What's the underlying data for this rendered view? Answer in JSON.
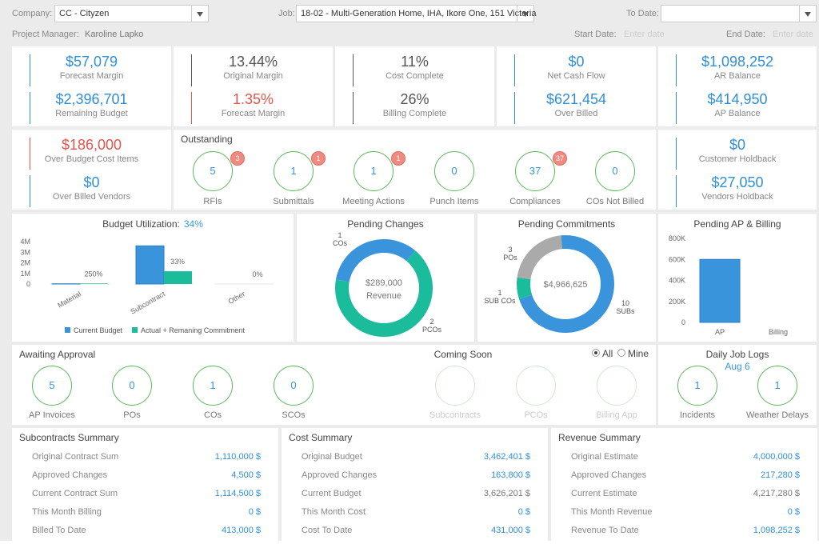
{
  "header": {
    "company_label": "Company:",
    "company": "CC - Cityzen",
    "job_label": "Job:",
    "job": "18-02 - Multi-Generation Home, IHA, Ikore One, 151 Victoria",
    "to_date_label": "To Date:",
    "pm_label": "Project Manager:",
    "pm": "Karoline Lapko",
    "start_date_label": "Start Date:",
    "start_date_placeholder": "Enter date",
    "end_date_label": "End Date:",
    "end_date_placeholder": "Enter date"
  },
  "kpi_cards": [
    {
      "items": [
        {
          "value": "$57,079",
          "label": "Forecast Margin",
          "color": "#2f8fd8"
        },
        {
          "value": "$2,396,701",
          "label": "Remaining Budget",
          "color": "#2f8fd8"
        }
      ]
    },
    {
      "items": [
        {
          "value": "13.44%",
          "label": "Original Margin",
          "color": "#555555"
        },
        {
          "value": "1.35%",
          "label": "Forecast Margin",
          "color": "#e8534a"
        }
      ]
    },
    {
      "items": [
        {
          "value": "11%",
          "label": "Cost Complete",
          "color": "#555555"
        },
        {
          "value": "26%",
          "label": "Billing Complete",
          "color": "#555555"
        }
      ]
    },
    {
      "items": [
        {
          "value": "$0",
          "label": "Net Cash Flow",
          "color": "#2f8fd8"
        },
        {
          "value": "$621,454",
          "label": "Over Billed",
          "color": "#2f8fd8"
        }
      ]
    },
    {
      "items": [
        {
          "value": "$1,098,252",
          "label": "AR Balance",
          "color": "#2f8fd8"
        },
        {
          "value": "$414,950",
          "label": "AP Balance",
          "color": "#2f8fd8"
        }
      ]
    },
    {
      "items": [
        {
          "value": "$186,000",
          "label": "Over Budget Cost Items",
          "color": "#e8534a"
        },
        {
          "value": "$0",
          "label": "Over Billed Vendors",
          "color": "#2f8fd8"
        }
      ]
    },
    {
      "items": [
        {
          "value": "$0",
          "label": "Customer Holdback",
          "color": "#2f8fd8"
        },
        {
          "value": "$27,050",
          "label": "Vendors Holdback",
          "color": "#2f8fd8"
        }
      ]
    }
  ],
  "outstanding": {
    "title": "Outstanding",
    "items": [
      {
        "count": "5",
        "label": "RFIs",
        "badge": "3"
      },
      {
        "count": "1",
        "label": "Submittals",
        "badge": "1"
      },
      {
        "count": "1",
        "label": "Meeting Actions",
        "badge": "1"
      },
      {
        "count": "0",
        "label": "Punch Items"
      },
      {
        "count": "37",
        "label": "Compliances",
        "badge": "37"
      },
      {
        "count": "0",
        "label": "COs Not Billed"
      }
    ]
  },
  "budget_utilization": {
    "type": "bar",
    "title": "Budget Utilization:",
    "value": "34%",
    "categories": [
      "Material",
      "Subcontract",
      "Other"
    ],
    "series": [
      {
        "name": "Current Budget",
        "color": "#3a94dc",
        "values": [
          20000,
          3600000,
          0
        ]
      },
      {
        "name": "Actual + Remaning Commitment",
        "color": "#1abc9c",
        "values": [
          50000,
          1200000,
          0
        ]
      }
    ],
    "percent_labels": [
      "250%",
      "33%",
      "0%"
    ],
    "ylim": [
      0,
      4000000
    ],
    "yticks": [
      0,
      {
        "value": 1000000,
        "label": "1M"
      },
      {
        "value": 2000000,
        "label": "2M"
      },
      {
        "value": 3000000,
        "label": "3M"
      },
      {
        "value": 4000000,
        "label": "4M"
      }
    ]
  },
  "pending_changes": {
    "type": "donut",
    "title": "Pending Changes",
    "center_value": "$289,000",
    "center_label": "Revenue",
    "slices": [
      {
        "name": "COs",
        "value": 1,
        "color": "#3a94dc"
      },
      {
        "name": "PCOs",
        "value": 2,
        "color": "#1abc9c"
      }
    ]
  },
  "pending_commitments": {
    "type": "donut",
    "title": "Pending Commitments",
    "center_value": "$4,966,625",
    "slices": [
      {
        "name": "SUB COs",
        "value": 1,
        "color": "#1abc9c"
      },
      {
        "name": "POs",
        "value": 3,
        "color": "#aaaaaa"
      },
      {
        "name": "SUBs",
        "value": 10,
        "color": "#3a94dc"
      }
    ]
  },
  "pending_ap_billing": {
    "type": "bar",
    "title": "Pending AP & Billing",
    "categories": [
      "AP",
      "Billing"
    ],
    "values": [
      600000,
      0
    ],
    "color": "#3a94dc",
    "ylim": [
      0,
      800000
    ],
    "yticks": [
      0,
      {
        "value": 200000,
        "label": "200K"
      },
      {
        "value": 400000,
        "label": "400K"
      },
      {
        "value": 600000,
        "label": "600K"
      },
      {
        "value": 800000,
        "label": "800K"
      }
    ]
  },
  "awaiting_approval": {
    "title": "Awaiting Approval",
    "items": [
      {
        "count": "5",
        "label": "AP Invoices"
      },
      {
        "count": "0",
        "label": "POs"
      },
      {
        "count": "1",
        "label": "COs"
      },
      {
        "count": "0",
        "label": "SCOs"
      }
    ]
  },
  "coming_soon": {
    "title": "Coming Soon",
    "items": [
      {
        "label": "Subcontracts"
      },
      {
        "label": "PCOs"
      },
      {
        "label": "Billing App"
      }
    ],
    "filter_options": [
      "All",
      "Mine"
    ]
  },
  "daily_job_logs": {
    "title": "Daily Job Logs",
    "date": "Aug 6",
    "items": [
      {
        "count": "1",
        "label": "Incidents"
      },
      {
        "count": "1",
        "label": "Weather Delays"
      }
    ]
  },
  "summaries": [
    {
      "title": "Subcontracts Summary",
      "rows": [
        {
          "label": "Original Contract Sum",
          "value": "1,110,000 $"
        },
        {
          "label": "Approved Changes",
          "value": "4,500 $"
        },
        {
          "label": "Current Contract Sum",
          "value": "1,114,500 $"
        },
        {
          "label": "This Month Billing",
          "value": "0 $"
        },
        {
          "label": "Billed To Date",
          "value": "413,000 $"
        }
      ]
    },
    {
      "title": "Cost Summary",
      "rows": [
        {
          "label": "Original Budget",
          "value": "3,462,401 $"
        },
        {
          "label": "Approved Changes",
          "value": "163,800 $"
        },
        {
          "label": "Current Budget",
          "value": "3,626,201 $",
          "color": "#777777"
        },
        {
          "label": "This Month Cost",
          "value": "0 $"
        },
        {
          "label": "Cost To Date",
          "value": "431,000 $"
        }
      ]
    },
    {
      "title": "Revenue Summary",
      "rows": [
        {
          "label": "Original Estimate",
          "value": "4,000,000 $"
        },
        {
          "label": "Approved Changes",
          "value": "217,280 $"
        },
        {
          "label": "Current Estimate",
          "value": "4,217,280 $",
          "color": "#777777"
        },
        {
          "label": "This Month Revenue",
          "value": "0 $"
        },
        {
          "label": "Revenue To Date",
          "value": "1,098,252 $"
        }
      ]
    }
  ]
}
